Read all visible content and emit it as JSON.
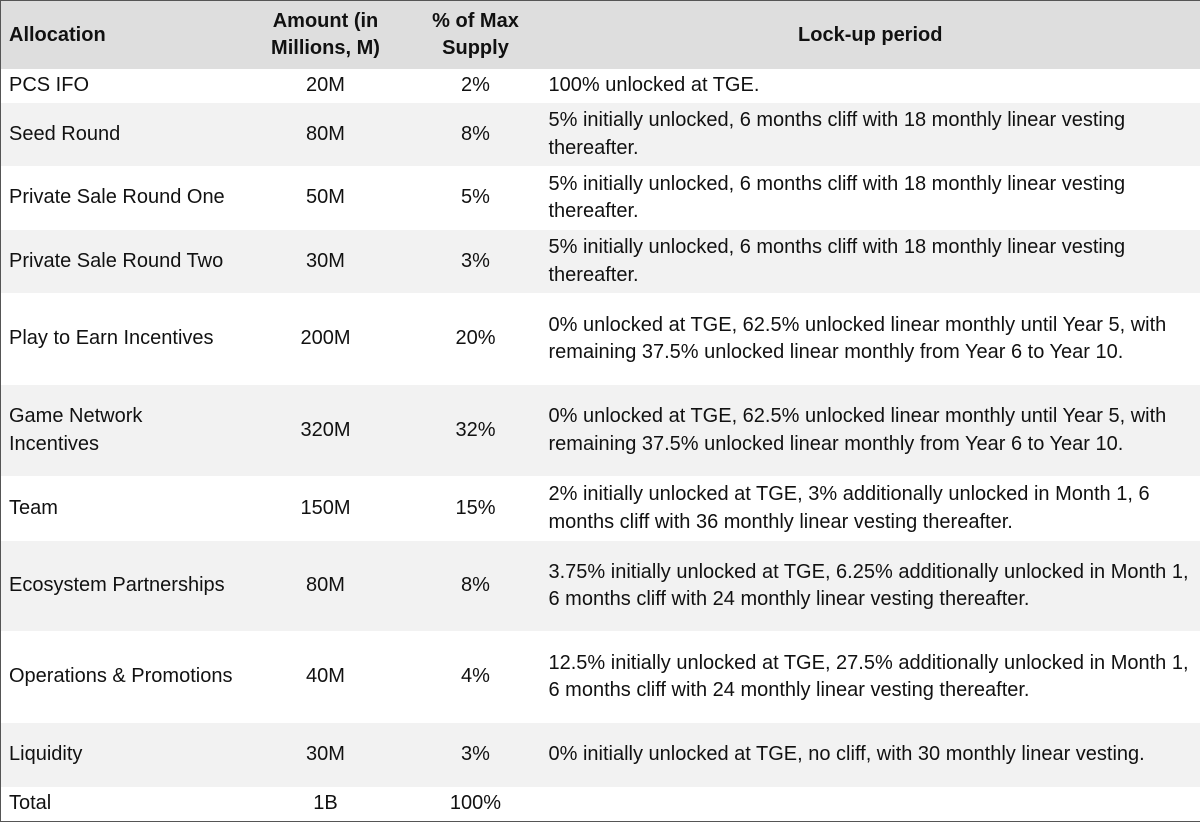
{
  "table": {
    "header": [
      "Allocation",
      "Amount (in Millions, M)",
      "% of Max Supply",
      "Lock-up period"
    ],
    "rows": [
      [
        "PCS IFO",
        "20M",
        "2%",
        "100% unlocked at TGE."
      ],
      [
        "Seed Round",
        "80M",
        "8%",
        "5% initially unlocked, 6 months cliff with 18 monthly linear vesting thereafter."
      ],
      [
        "Private Sale Round One",
        "50M",
        "5%",
        "5% initially unlocked, 6 months cliff with 18 monthly linear vesting thereafter."
      ],
      [
        "Private Sale Round Two",
        "30M",
        "3%",
        "5% initially unlocked, 6 months cliff with 18 monthly linear vesting thereafter."
      ],
      [
        "Play to Earn Incentives",
        "200M",
        "20%",
        "0% unlocked at TGE,  62.5% unlocked linear monthly until Year 5, with remaining 37.5% unlocked linear monthly from Year 6 to Year 10."
      ],
      [
        "Game Network Incentives",
        "320M",
        "32%",
        "0% unlocked at TGE,  62.5% unlocked linear monthly until Year 5, with remaining 37.5% unlocked linear monthly from Year 6 to Year 10."
      ],
      [
        "Team",
        "150M",
        "15%",
        "2% initially unlocked at TGE, 3% additionally unlocked in Month 1, 6 months cliff with 36 monthly linear vesting thereafter."
      ],
      [
        "Ecosystem Partnerships",
        "80M",
        "8%",
        "3.75% initially unlocked at TGE, 6.25% additionally unlocked in Month 1, 6 months cliff with 24 monthly linear vesting thereafter."
      ],
      [
        "Operations & Promotions",
        "40M",
        "4%",
        "12.5% initially unlocked at TGE, 27.5% additionally unlocked in Month 1, 6 months cliff with 24 monthly linear vesting thereafter."
      ],
      [
        "Liquidity",
        "30M",
        "3%",
        "0% initially unlocked at TGE, no cliff, with 30 monthly linear vesting."
      ],
      [
        "Total",
        "1B",
        "100%",
        ""
      ]
    ]
  }
}
